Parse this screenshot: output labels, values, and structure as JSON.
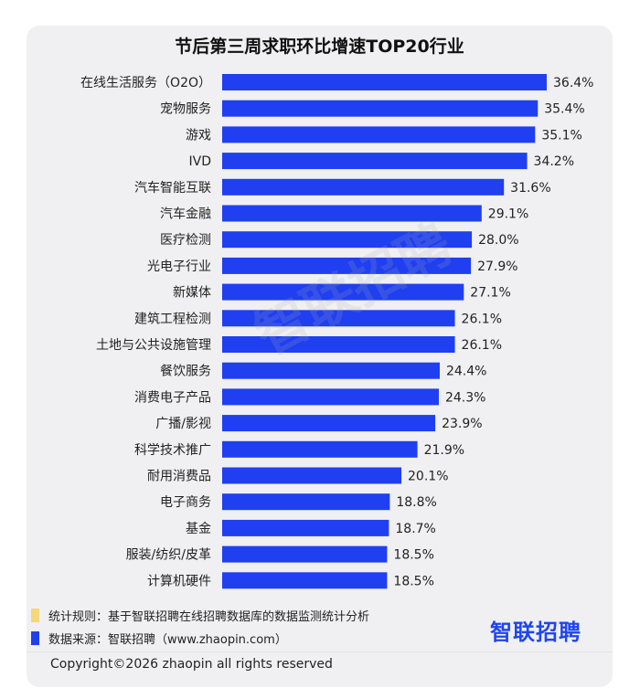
{
  "chart_data": {
    "type": "bar",
    "orientation": "horizontal",
    "title": "节后第三周求职环比增速TOP20行业",
    "categories": [
      "在线生活服务（O2O）",
      "宠物服务",
      "游戏",
      "IVD",
      "汽车智能互联",
      "汽车金融",
      "医疗检测",
      "光电子行业",
      "新媒体",
      "建筑工程检测",
      "土地与公共设施管理",
      "餐饮服务",
      "消费电子产品",
      "广播/影视",
      "科学技术推广",
      "耐用消费品",
      "电子商务",
      "基金",
      "服装/纺织/皮革",
      "计算机硬件"
    ],
    "values": [
      36.4,
      35.4,
      35.1,
      34.2,
      31.6,
      29.1,
      28.0,
      27.9,
      27.1,
      26.1,
      26.1,
      24.4,
      24.3,
      23.9,
      21.9,
      20.1,
      18.8,
      18.7,
      18.5,
      18.5
    ],
    "value_labels": [
      "36.4%",
      "35.4%",
      "35.1%",
      "34.2%",
      "31.6%",
      "29.1%",
      "28.0%",
      "27.9%",
      "27.1%",
      "26.1%",
      "26.1%",
      "24.4%",
      "24.3%",
      "23.9%",
      "21.9%",
      "20.1%",
      "18.8%",
      "18.7%",
      "18.5%",
      "18.5%"
    ],
    "xlim": [
      0,
      36.4
    ],
    "grid": false,
    "bar_color": "#1f3ff0"
  },
  "watermark": "智联招聘",
  "footnotes": [
    {
      "text": "统计规则：基于智联招聘在线招聘数据库的数据监测统计分析",
      "color": "#f5d77e"
    },
    {
      "text": "数据来源：智联招聘（www.zhaopin.com）",
      "color": "#1f3ff0"
    }
  ],
  "logo": "智联招聘",
  "copyright": "Copyright©2026 zhaopin all rights reserved"
}
